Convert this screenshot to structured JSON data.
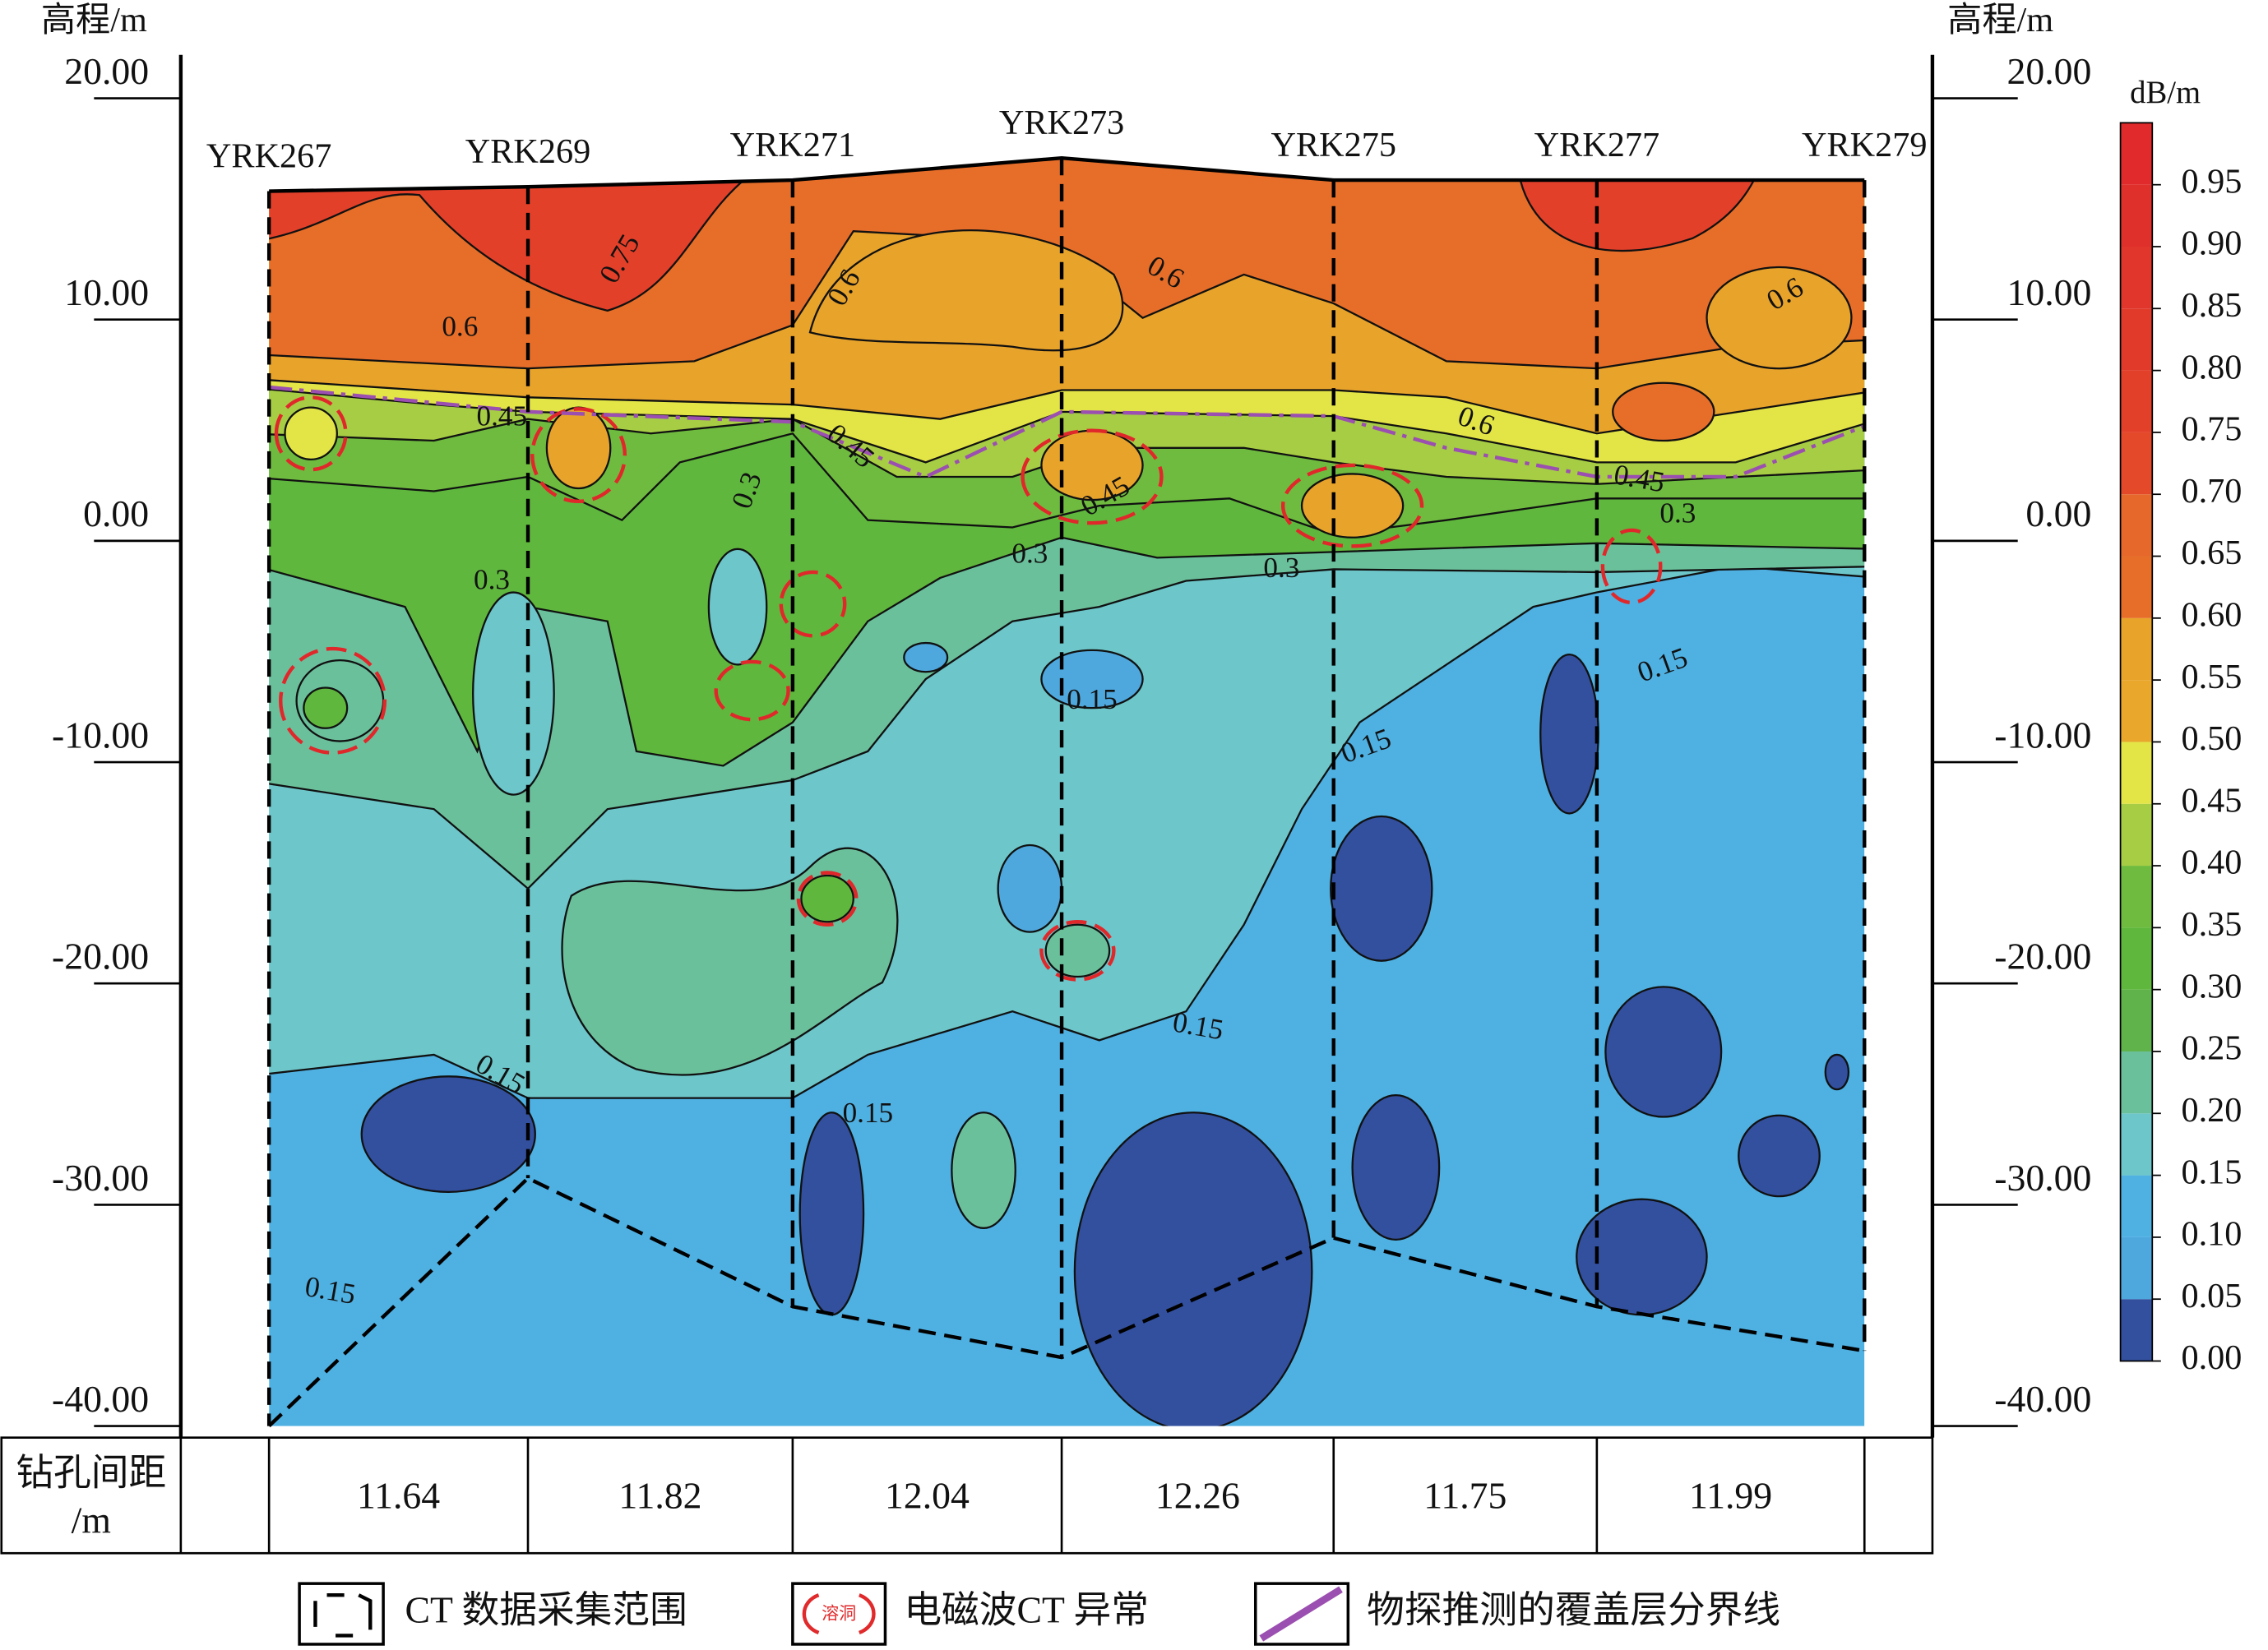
{
  "chart_data": {
    "type": "contour",
    "y_axis_label": "高程/m",
    "y2_axis_label": "高程/m",
    "colorbar_label": "dB/m",
    "ylim": [
      -40,
      20
    ],
    "yticks": [
      {
        "value": 20,
        "label": "20.00"
      },
      {
        "value": 10,
        "label": "10.00"
      },
      {
        "value": 0,
        "label": "0.00"
      },
      {
        "value": -10,
        "label": "-10.00"
      },
      {
        "value": -20,
        "label": "-20.00"
      },
      {
        "value": -30,
        "label": "-30.00"
      },
      {
        "value": -40,
        "label": "-40.00"
      }
    ],
    "boreholes": [
      {
        "name": "YRK267",
        "top": 15.8,
        "bottom": -40
      },
      {
        "name": "YRK269",
        "top": 16.0,
        "bottom": -28.8
      },
      {
        "name": "YRK271",
        "top": 16.3,
        "bottom": -34.6
      },
      {
        "name": "YRK273",
        "top": 17.3,
        "bottom": -36.9
      },
      {
        "name": "YRK275",
        "top": 16.3,
        "bottom": -31.5
      },
      {
        "name": "YRK277",
        "top": 16.3,
        "bottom": -34.6
      },
      {
        "name": "YRK279",
        "top": 16.3,
        "bottom": -36.6
      }
    ],
    "spacing_header": [
      "钻孔间距",
      "/m"
    ],
    "spacings": [
      11.64,
      11.82,
      12.04,
      12.26,
      11.75,
      11.99
    ],
    "color_lim": [
      0,
      1
    ],
    "color_ticks": [
      {
        "value": 0,
        "label": "0.00"
      },
      0.05,
      {
        "value": 0.1,
        "label": "0.10"
      },
      0.15,
      {
        "value": 0.2,
        "label": "0.20"
      },
      0.25,
      {
        "value": 0.3,
        "label": "0.30"
      },
      0.35,
      {
        "value": 0.4,
        "label": "0.40"
      },
      0.45,
      {
        "value": 0.5,
        "label": "0.50"
      },
      0.55,
      {
        "value": 0.6,
        "label": "0.60"
      },
      0.65,
      {
        "value": 0.7,
        "label": "0.70"
      },
      0.75,
      {
        "value": 0.8,
        "label": "0.80"
      },
      0.85,
      {
        "value": 0.9,
        "label": "0.90"
      },
      0.95
    ],
    "colors": [
      "#33509e",
      "#4ea8dd",
      "#4fb0e2",
      "#6dc6c9",
      "#6bc09c",
      "#5fb34a",
      "#5fb73d",
      "#6fbb3f",
      "#a6cd44",
      "#e3e446",
      "#e9a72c",
      "#e8a32b",
      "#e66e29",
      "#e6682a",
      "#e4492a",
      "#e3402a",
      "#e13a2a",
      "#e1362b",
      "#e0302b",
      "#e02a2b"
    ],
    "contour_labels": [
      0.75,
      0.6,
      0.6,
      0.6,
      0.6,
      0.6,
      0.45,
      0.45,
      0.45,
      0.45,
      0.3,
      0.3,
      0.3,
      0.3,
      0.3,
      0.15,
      0.15,
      0.15,
      0.15,
      0.15,
      0.15,
      0.15
    ],
    "legend": {
      "ct_range": "CT 数据采集范围",
      "anomaly": "电磁波CT 异常",
      "anomaly_icon": "溶洞",
      "boundary": "物探推测的覆盖层分界线"
    }
  }
}
